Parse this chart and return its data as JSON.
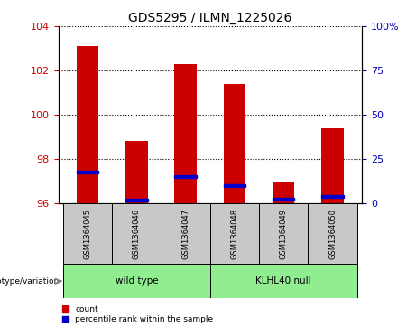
{
  "title": "GDS5295 / ILMN_1225026",
  "samples": [
    "GSM1364045",
    "GSM1364046",
    "GSM1364047",
    "GSM1364048",
    "GSM1364049",
    "GSM1364050"
  ],
  "count_values": [
    103.1,
    98.8,
    102.3,
    101.4,
    97.0,
    99.4
  ],
  "percentile_values": [
    17.5,
    2.0,
    15.0,
    10.0,
    2.5,
    4.0
  ],
  "ylim_left": [
    96,
    104
  ],
  "ylim_right": [
    0,
    100
  ],
  "yticks_left": [
    96,
    98,
    100,
    102,
    104
  ],
  "yticks_right": [
    0,
    25,
    50,
    75,
    100
  ],
  "bar_color": "#cc0000",
  "marker_color": "#0000cc",
  "bar_width": 0.45,
  "groups": [
    {
      "label": "wild type",
      "indices": [
        0,
        1,
        2
      ],
      "color": "#90ee90"
    },
    {
      "label": "KLHL40 null",
      "indices": [
        3,
        4,
        5
      ],
      "color": "#90ee90"
    }
  ],
  "group_label_prefix": "genotype/variation",
  "legend_items": [
    {
      "color": "#cc0000",
      "label": "count"
    },
    {
      "color": "#0000cc",
      "label": "percentile rank within the sample"
    }
  ],
  "left_yaxis_color": "#cc0000",
  "right_yaxis_color": "#0000bb",
  "tick_label_bg": "#c8c8c8",
  "grid_color": "black",
  "fig_width": 4.61,
  "fig_height": 3.63,
  "dpi": 100
}
